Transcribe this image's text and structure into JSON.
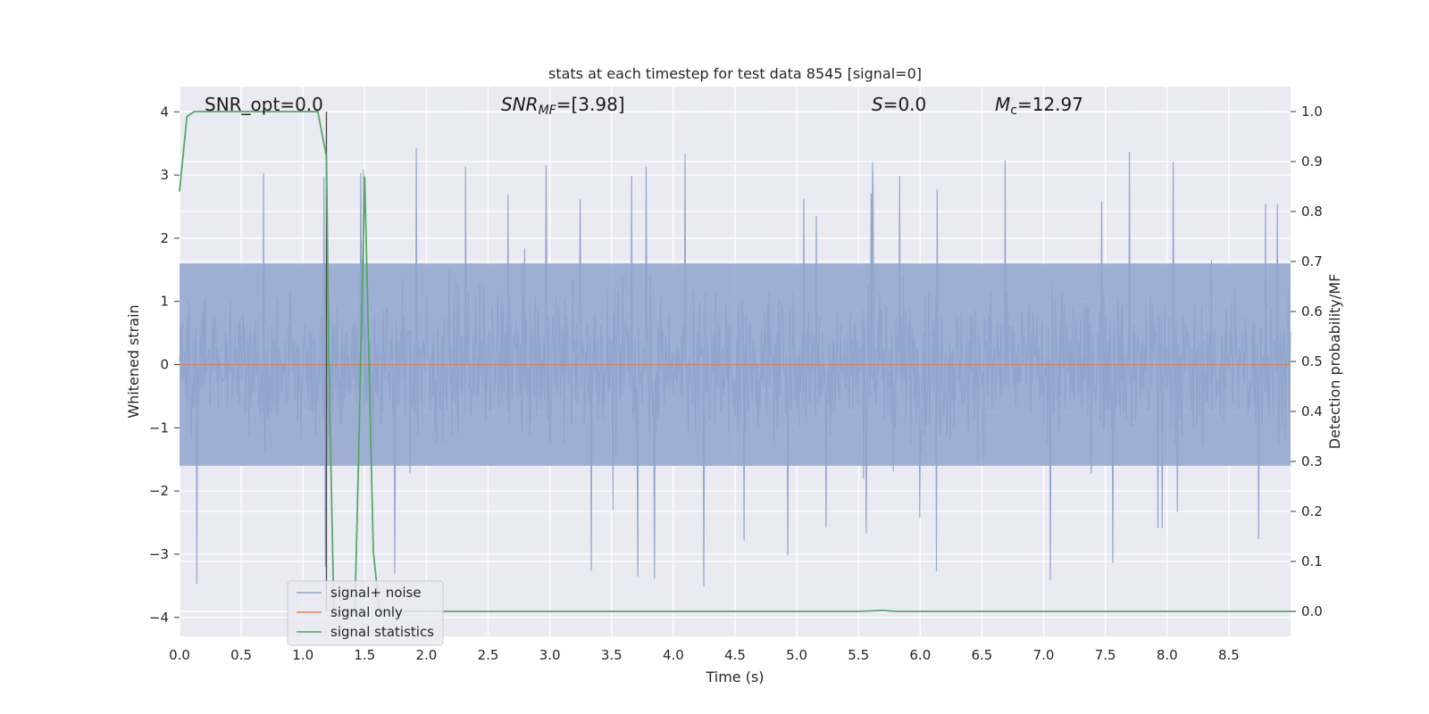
{
  "chart_data": {
    "type": "line",
    "title": "stats at each timestep for test data 8545 [signal=0]",
    "xlabel": "Time (s)",
    "ylabel_left": "Whitened strain",
    "ylabel_right": "Detection probability/MF",
    "xlim": [
      0.0,
      9.0
    ],
    "ylim_left": [
      -4.3,
      4.4
    ],
    "ylim_right": [
      -0.05,
      1.05
    ],
    "x_ticks": [
      "0.0",
      "0.5",
      "1.0",
      "1.5",
      "2.0",
      "2.5",
      "3.0",
      "3.5",
      "4.0",
      "4.5",
      "5.0",
      "5.5",
      "6.0",
      "6.5",
      "7.0",
      "7.5",
      "8.0",
      "8.5"
    ],
    "y_ticks_left": [
      "4",
      "3",
      "2",
      "1",
      "0",
      "−1",
      "−2",
      "−3",
      "−4"
    ],
    "y_ticks_right": [
      "1.0",
      "0.9",
      "0.8",
      "0.7",
      "0.6",
      "0.5",
      "0.4",
      "0.3",
      "0.2",
      "0.1",
      "0.0"
    ],
    "grid": true,
    "legend_position": "lower-left",
    "annotations": {
      "snr_opt": "SNR_opt=0.0",
      "snr_mf_base": "SNR",
      "snr_mf_sub": "MF",
      "snr_mf_value": "=[3.98]",
      "s_symbol": "S",
      "s_value": "=0.0",
      "mc_symbol": "M",
      "mc_sub": "c",
      "mc_value": "=12.97"
    },
    "series": [
      {
        "name": "signal+ noise",
        "color": "#8fa4cc",
        "axis": "left",
        "description_values": {
          "typical_band": [
            -1.6,
            1.6
          ],
          "max": 4.0,
          "min": -3.9
        }
      },
      {
        "name": "signal only",
        "color": "#dd8452",
        "axis": "left",
        "values_constant": 0.0
      },
      {
        "name": "signal statistics",
        "color": "#55a868",
        "axis": "right",
        "x": [
          0.0,
          0.06,
          0.12,
          0.3,
          0.5,
          0.8,
          1.0,
          1.12,
          1.19,
          1.21,
          1.25,
          1.3,
          1.35,
          1.42,
          1.45,
          1.5,
          1.53,
          1.57,
          1.62,
          1.7,
          2.0,
          3.0,
          4.0,
          5.0,
          5.5,
          5.7,
          5.8,
          6.0,
          7.0,
          8.0,
          9.0
        ],
        "y": [
          0.84,
          0.99,
          1.0,
          1.0,
          1.0,
          1.0,
          1.0,
          1.0,
          0.91,
          0.5,
          0.0,
          0.0,
          0.0,
          0.0,
          0.3,
          0.87,
          0.55,
          0.12,
          0.0,
          0.0,
          0.0,
          0.0,
          0.0,
          0.0,
          0.0,
          0.002,
          0.0,
          0.0,
          0.0,
          0.0,
          0.0
        ]
      }
    ],
    "vertical_marker_x": 1.19
  }
}
